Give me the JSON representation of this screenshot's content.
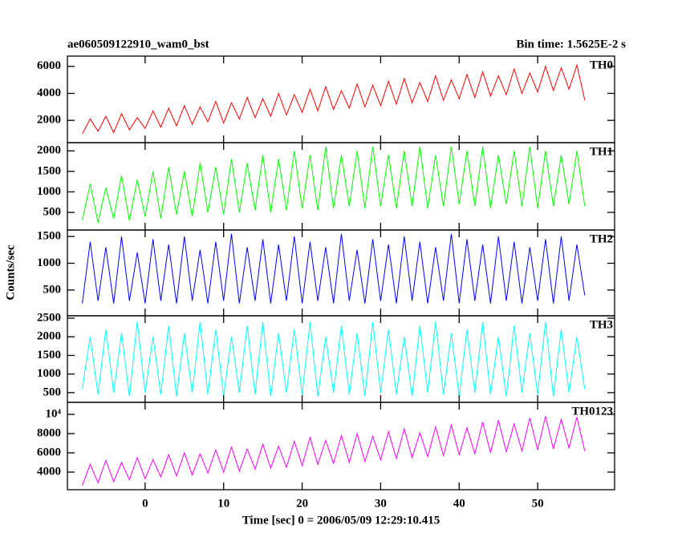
{
  "figure": {
    "title": "ae060509122910_wam0_bst",
    "subtitle": "Bin time: 1.5625E-2 s",
    "ylabel": "Counts/sec",
    "xlabel": "Time [sec] 0 = 2006/05/09 12:29:10.415",
    "xlim": [
      -9.9,
      59.8
    ],
    "xticks": [
      0,
      10,
      20,
      30,
      40,
      50
    ],
    "x": [
      -8,
      -7,
      -6,
      -5,
      -4,
      -3,
      -2,
      -1,
      0,
      1,
      2,
      3,
      4,
      5,
      6,
      7,
      8,
      9,
      10,
      11,
      12,
      13,
      14,
      15,
      16,
      17,
      18,
      19,
      20,
      21,
      22,
      23,
      24,
      25,
      26,
      27,
      28,
      29,
      30,
      31,
      32,
      33,
      34,
      35,
      36,
      37,
      38,
      39,
      40,
      41,
      42,
      43,
      44,
      45,
      46,
      47,
      48,
      49,
      50,
      51,
      52,
      53,
      54,
      55,
      56
    ]
  },
  "chart_data": [
    {
      "type": "line",
      "label": "TH0",
      "color": "#ff0000",
      "ylim": [
        350,
        6760
      ],
      "yticks": [
        2000,
        4000,
        6000
      ],
      "values": [
        1000,
        2100,
        1200,
        2300,
        1100,
        2500,
        1300,
        2200,
        1400,
        2700,
        1500,
        2900,
        1600,
        3100,
        1700,
        3000,
        1900,
        3400,
        1800,
        3300,
        2100,
        3700,
        2200,
        3600,
        2300,
        4000,
        2400,
        3900,
        2600,
        4300,
        2700,
        4500,
        2800,
        4200,
        2900,
        4700,
        3000,
        4600,
        3100,
        4900,
        3200,
        5100,
        3300,
        4800,
        3400,
        5300,
        3500,
        5000,
        3600,
        5400,
        3700,
        5600,
        3800,
        5300,
        3900,
        5800,
        4000,
        5500,
        4100,
        6000,
        4200,
        5900,
        4300,
        6100,
        3500
      ]
    },
    {
      "type": "line",
      "label": "TH1",
      "color": "#00ff00",
      "ylim": [
        70,
        2200
      ],
      "yticks": [
        500,
        1000,
        1500,
        2000
      ],
      "values": [
        300,
        1200,
        250,
        1100,
        350,
        1400,
        300,
        1300,
        400,
        1500,
        350,
        1600,
        450,
        1500,
        400,
        1700,
        500,
        1600,
        450,
        1800,
        500,
        1700,
        550,
        1900,
        500,
        1800,
        550,
        2000,
        600,
        1900,
        550,
        2100,
        600,
        1900,
        650,
        2000,
        600,
        2100,
        650,
        1900,
        600,
        2000,
        650,
        2100,
        600,
        1900,
        650,
        2100,
        700,
        2000,
        650,
        2100,
        600,
        1900,
        700,
        2000,
        650,
        2100,
        600,
        2000,
        650,
        1900,
        700,
        2000,
        650
      ]
    },
    {
      "type": "line",
      "label": "TH2",
      "color": "#0000ff",
      "ylim": [
        20,
        1620
      ],
      "yticks": [
        500,
        1000,
        1500
      ],
      "values": [
        250,
        1400,
        300,
        1300,
        250,
        1500,
        300,
        1200,
        250,
        1450,
        300,
        1350,
        250,
        1500,
        300,
        1250,
        250,
        1400,
        300,
        1550,
        250,
        1300,
        300,
        1450,
        250,
        1350,
        300,
        1500,
        250,
        1400,
        300,
        1300,
        250,
        1550,
        300,
        1250,
        250,
        1450,
        300,
        1350,
        250,
        1500,
        300,
        1400,
        250,
        1300,
        300,
        1550,
        250,
        1450,
        300,
        1350,
        250,
        1500,
        300,
        1400,
        250,
        1300,
        300,
        1450,
        250,
        1500,
        300,
        1350,
        400
      ]
    },
    {
      "type": "line",
      "label": "TH3",
      "color": "#00ffff",
      "ylim": [
        240,
        2565
      ],
      "yticks": [
        500,
        1000,
        1500,
        2000,
        2500
      ],
      "values": [
        600,
        2000,
        450,
        2200,
        500,
        2100,
        400,
        2400,
        500,
        2000,
        450,
        2300,
        400,
        2100,
        500,
        2400,
        450,
        2200,
        400,
        2000,
        500,
        2300,
        450,
        2400,
        400,
        2100,
        500,
        2200,
        450,
        2400,
        400,
        2000,
        500,
        2300,
        450,
        2100,
        400,
        2400,
        500,
        2200,
        450,
        2000,
        400,
        2300,
        500,
        2400,
        450,
        2100,
        400,
        2200,
        500,
        2400,
        450,
        2000,
        400,
        2300,
        500,
        2100,
        450,
        2400,
        400,
        2200,
        500,
        2000,
        600
      ]
    },
    {
      "type": "line",
      "label": "TH0123",
      "color": "#ff00ff",
      "ylim": [
        2170,
        11250
      ],
      "yticks": [
        4000,
        6000,
        8000,
        {
          "value": 10000,
          "label": "10⁴"
        }
      ],
      "values": [
        2600,
        4800,
        2900,
        5200,
        3000,
        5000,
        3200,
        5500,
        3300,
        5300,
        3500,
        5800,
        3600,
        6000,
        3700,
        5900,
        3900,
        6300,
        4000,
        6600,
        4100,
        6400,
        4300,
        6900,
        4400,
        6700,
        4500,
        7200,
        4700,
        7600,
        4800,
        7300,
        4900,
        7800,
        5000,
        8000,
        5100,
        7700,
        5300,
        8200,
        5400,
        8500,
        5500,
        8100,
        5600,
        8700,
        5700,
        8900,
        5800,
        8600,
        5900,
        9200,
        6000,
        9400,
        6100,
        9000,
        6200,
        9600,
        6300,
        9800,
        6400,
        9500,
        6500,
        9700,
        6200
      ]
    }
  ]
}
